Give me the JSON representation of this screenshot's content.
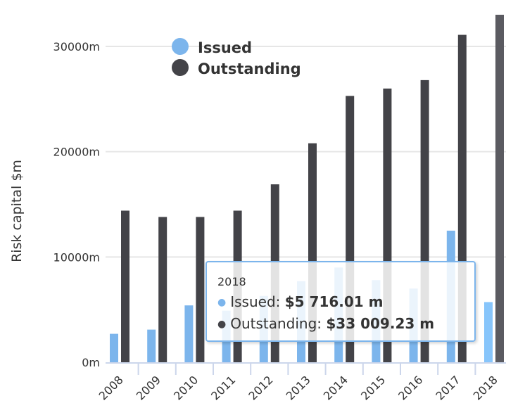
{
  "chart_data": {
    "type": "bar",
    "title": "",
    "xlabel": "",
    "ylabel": "Risk capital $m",
    "ylim": [
      0,
      30000
    ],
    "yticks": [
      0,
      10000,
      20000,
      30000
    ],
    "ytick_labels": [
      "0m",
      "10000m",
      "20000m",
      "30000m"
    ],
    "grid": true,
    "legend_position": "top-left",
    "categories": [
      "2008",
      "2009",
      "2010",
      "2011",
      "2012",
      "2013",
      "2014",
      "2015",
      "2016",
      "2017",
      "2018"
    ],
    "series": [
      {
        "name": "Issued",
        "color": "#7cb5ec",
        "values": [
          2700,
          3100,
          5400,
          4900,
          6300,
          7700,
          9000,
          7800,
          7000,
          12500,
          5716.01
        ]
      },
      {
        "name": "Outstanding",
        "color": "#434348",
        "values": [
          14400,
          13800,
          13800,
          14400,
          16900,
          20800,
          25300,
          26000,
          26800,
          31100,
          33009.23
        ]
      }
    ],
    "highlighted_category": "2018"
  },
  "tooltip": {
    "header": "2018",
    "rows": [
      {
        "label": "Issued: ",
        "value": "$5 716.01 m",
        "color": "#7cb5ec"
      },
      {
        "label": "Outstanding: ",
        "value": "$33 009.23 m",
        "color": "#434348"
      }
    ],
    "dot": "●"
  },
  "legend": {
    "items": [
      {
        "label": "Issued",
        "color": "#7cb5ec"
      },
      {
        "label": "Outstanding",
        "color": "#434348"
      }
    ]
  }
}
